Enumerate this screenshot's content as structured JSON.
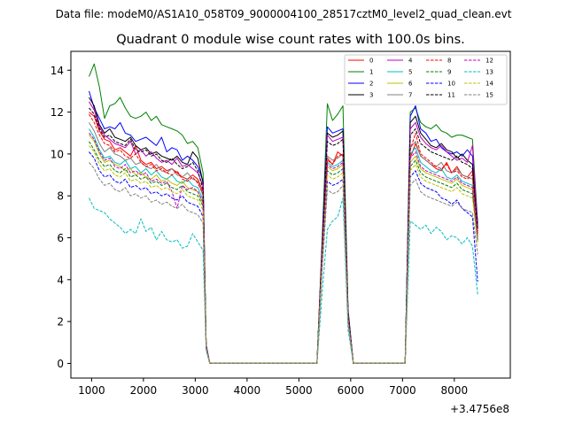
{
  "chart_data": {
    "type": "line",
    "suptitle": "Data file: modeM0/AS1A10_058T09_9000004100_28517cztM0_level2_quad_clean.evt",
    "title": "Quadrant 0 module wise count rates with 100.0s bins.",
    "xlabel": "",
    "ylabel": "",
    "x_offset_label": "+3.4756e8",
    "xlim": [
      600,
      9080
    ],
    "ylim": [
      -0.7,
      14.9
    ],
    "xticks": [
      1000,
      2000,
      3000,
      4000,
      5000,
      6000,
      7000,
      8000
    ],
    "yticks": [
      0,
      2,
      4,
      6,
      8,
      10,
      12,
      14
    ],
    "legend_location": "top-right",
    "x": [
      950,
      1050,
      1150,
      1250,
      1350,
      1450,
      1550,
      1650,
      1750,
      1850,
      1950,
      2050,
      2150,
      2250,
      2350,
      2450,
      2550,
      2650,
      2750,
      2850,
      2950,
      3050,
      3150,
      3210,
      3280,
      3350,
      5350,
      5450,
      5550,
      5650,
      5750,
      5850,
      5950,
      6050,
      6150,
      7050,
      7150,
      7250,
      7350,
      7450,
      7550,
      7650,
      7750,
      7850,
      7950,
      8050,
      8150,
      8250,
      8350,
      8450
    ],
    "series": [
      {
        "name": "0",
        "color": "#ff0000",
        "dash": false,
        "values": [
          12.0,
          11.8,
          11.1,
          10.7,
          10.6,
          10.2,
          10.3,
          10.1,
          9.9,
          10.4,
          9.7,
          9.5,
          9.6,
          9.3,
          9.4,
          9.2,
          9.3,
          9.1,
          8.9,
          8.8,
          9.0,
          8.8,
          8.2,
          0.8,
          0.0,
          0.0,
          0.0,
          5.5,
          9.8,
          9.5,
          10.1,
          9.9,
          2.3,
          0.0,
          0.0,
          0.0,
          9.8,
          10.5,
          9.9,
          9.7,
          9.5,
          9.3,
          9.2,
          9.6,
          9.1,
          9.4,
          9.0,
          8.9,
          9.2,
          6.3
        ]
      },
      {
        "name": "1",
        "color": "#008000",
        "dash": false,
        "values": [
          13.7,
          14.3,
          13.2,
          11.7,
          12.3,
          12.4,
          12.7,
          12.2,
          11.8,
          11.7,
          11.8,
          12.0,
          11.6,
          11.8,
          11.4,
          11.3,
          11.2,
          11.1,
          10.9,
          10.5,
          10.6,
          10.3,
          9.1,
          0.9,
          0.0,
          0.0,
          0.0,
          6.0,
          12.4,
          11.6,
          11.9,
          12.3,
          2.6,
          0.0,
          0.0,
          0.0,
          12.0,
          12.2,
          11.5,
          11.3,
          11.2,
          11.4,
          11.1,
          11.0,
          10.8,
          10.9,
          10.9,
          10.8,
          10.7,
          6.7
        ]
      },
      {
        "name": "2",
        "color": "#0000ff",
        "dash": false,
        "values": [
          13.0,
          12.2,
          11.7,
          11.2,
          11.3,
          11.2,
          11.5,
          11.0,
          10.9,
          10.6,
          10.7,
          10.8,
          10.6,
          10.4,
          10.8,
          10.1,
          10.3,
          10.2,
          9.7,
          9.9,
          9.7,
          9.4,
          8.7,
          0.9,
          0.0,
          0.0,
          0.0,
          5.8,
          11.3,
          11.0,
          11.1,
          11.2,
          2.5,
          0.0,
          0.0,
          0.0,
          11.8,
          12.3,
          11.2,
          11.0,
          10.6,
          10.7,
          10.3,
          10.1,
          10.0,
          10.1,
          9.9,
          10.2,
          9.9,
          6.6
        ]
      },
      {
        "name": "3",
        "color": "#000000",
        "dash": false,
        "values": [
          12.7,
          12.3,
          11.4,
          11.0,
          11.2,
          10.8,
          10.7,
          10.6,
          10.8,
          10.4,
          10.2,
          10.3,
          10.0,
          10.1,
          9.9,
          9.8,
          9.7,
          9.9,
          9.6,
          9.5,
          10.1,
          9.8,
          8.6,
          0.8,
          0.0,
          0.0,
          0.0,
          5.7,
          11.0,
          10.8,
          10.9,
          11.1,
          2.4,
          0.0,
          0.0,
          0.0,
          11.5,
          11.8,
          11.0,
          10.7,
          10.4,
          10.3,
          10.5,
          10.2,
          10.1,
          9.8,
          10.0,
          9.7,
          9.5,
          6.5
        ]
      },
      {
        "name": "4",
        "color": "#bf00bf",
        "dash": false,
        "values": [
          12.5,
          12.1,
          11.3,
          10.9,
          10.7,
          10.5,
          10.4,
          10.3,
          10.6,
          10.0,
          10.2,
          9.9,
          10.1,
          9.8,
          9.6,
          9.7,
          9.5,
          9.8,
          9.4,
          9.5,
          9.3,
          9.1,
          8.5,
          0.8,
          0.0,
          0.0,
          0.0,
          5.6,
          10.9,
          10.6,
          10.7,
          10.8,
          2.4,
          0.0,
          0.0,
          0.0,
          11.2,
          11.5,
          10.8,
          10.5,
          10.3,
          10.2,
          10.4,
          10.1,
          9.9,
          9.7,
          9.8,
          9.6,
          10.4,
          6.4
        ]
      },
      {
        "name": "5",
        "color": "#00bfbf",
        "dash": false,
        "values": [
          11.2,
          10.8,
          10.2,
          9.8,
          9.9,
          9.6,
          9.5,
          9.7,
          9.3,
          9.4,
          9.1,
          9.3,
          9.0,
          9.2,
          8.9,
          8.8,
          9.0,
          8.7,
          8.6,
          8.8,
          8.5,
          8.4,
          7.8,
          0.8,
          0.0,
          0.0,
          0.0,
          5.2,
          9.6,
          9.4,
          9.5,
          9.7,
          2.2,
          0.0,
          0.0,
          0.0,
          10.0,
          10.3,
          9.6,
          9.4,
          9.2,
          9.1,
          9.3,
          8.9,
          8.8,
          9.0,
          8.7,
          8.6,
          8.5,
          6.0
        ]
      },
      {
        "name": "6",
        "color": "#bfbf00",
        "dash": false,
        "values": [
          10.9,
          10.6,
          10.0,
          9.6,
          9.7,
          9.5,
          9.4,
          9.2,
          9.3,
          9.0,
          9.1,
          8.9,
          8.8,
          9.0,
          8.7,
          8.8,
          8.6,
          8.5,
          8.7,
          8.4,
          8.3,
          8.2,
          7.6,
          0.8,
          0.0,
          0.0,
          0.0,
          5.1,
          9.4,
          9.2,
          9.3,
          9.5,
          2.1,
          0.0,
          0.0,
          0.0,
          9.6,
          9.9,
          9.3,
          9.1,
          9.0,
          8.9,
          8.8,
          8.7,
          8.6,
          8.8,
          8.5,
          8.4,
          8.3,
          5.9
        ]
      },
      {
        "name": "7",
        "color": "#808080",
        "dash": false,
        "values": [
          11.5,
          11.1,
          10.5,
          10.1,
          10.3,
          10.0,
          9.9,
          9.7,
          9.8,
          9.5,
          9.6,
          9.4,
          9.3,
          9.5,
          9.2,
          9.1,
          9.3,
          9.0,
          8.9,
          9.1,
          8.8,
          8.7,
          8.0,
          0.8,
          0.0,
          0.0,
          0.0,
          5.3,
          9.9,
          9.7,
          9.8,
          10.0,
          2.2,
          0.0,
          0.0,
          0.0,
          10.3,
          10.6,
          9.9,
          9.7,
          9.5,
          9.4,
          9.6,
          9.2,
          9.1,
          9.3,
          9.0,
          8.9,
          8.8,
          6.1
        ]
      },
      {
        "name": "8",
        "color": "#ff0000",
        "dash": true,
        "values": [
          11.9,
          11.5,
          10.9,
          10.5,
          10.4,
          10.1,
          10.2,
          9.9,
          9.8,
          10.0,
          9.6,
          9.4,
          9.5,
          9.2,
          9.3,
          9.1,
          9.0,
          9.2,
          8.8,
          8.7,
          8.9,
          8.6,
          8.1,
          0.8,
          0.0,
          0.0,
          0.0,
          5.4,
          9.7,
          9.5,
          9.9,
          10.0,
          2.3,
          0.0,
          0.0,
          0.0,
          10.2,
          11.0,
          10.0,
          9.8,
          9.6,
          9.4,
          9.3,
          9.5,
          9.1,
          9.2,
          8.9,
          8.8,
          9.0,
          6.2
        ]
      },
      {
        "name": "9",
        "color": "#008000",
        "dash": true,
        "values": [
          10.6,
          10.2,
          9.7,
          9.4,
          9.5,
          9.2,
          9.1,
          9.3,
          8.9,
          9.0,
          8.8,
          8.9,
          8.6,
          8.7,
          8.5,
          8.6,
          8.4,
          8.3,
          8.5,
          8.2,
          8.1,
          8.0,
          7.5,
          0.7,
          0.0,
          0.0,
          0.0,
          5.0,
          9.2,
          9.0,
          9.1,
          9.3,
          2.1,
          0.0,
          0.0,
          0.0,
          9.4,
          9.7,
          9.1,
          8.9,
          8.8,
          8.7,
          8.6,
          8.5,
          8.4,
          8.6,
          8.3,
          8.2,
          8.1,
          5.8
        ]
      },
      {
        "name": "10",
        "color": "#0000ff",
        "dash": true,
        "values": [
          10.1,
          9.8,
          9.2,
          8.9,
          9.0,
          8.7,
          8.6,
          8.8,
          8.4,
          8.5,
          8.3,
          8.4,
          8.1,
          8.2,
          8.0,
          8.1,
          7.9,
          7.8,
          8.0,
          7.7,
          7.6,
          7.5,
          7.0,
          0.7,
          0.0,
          0.0,
          0.0,
          4.7,
          8.7,
          8.5,
          8.6,
          8.8,
          2.0,
          0.0,
          0.0,
          0.0,
          8.9,
          9.2,
          8.6,
          8.4,
          8.3,
          8.2,
          7.9,
          7.8,
          7.6,
          7.8,
          7.4,
          7.2,
          7.0,
          3.9
        ]
      },
      {
        "name": "11",
        "color": "#000000",
        "dash": true,
        "values": [
          12.2,
          11.9,
          11.2,
          10.8,
          10.9,
          10.6,
          10.5,
          10.4,
          10.7,
          10.2,
          10.1,
          10.2,
          9.9,
          10.0,
          9.7,
          9.6,
          9.8,
          9.5,
          9.3,
          9.4,
          9.6,
          9.2,
          8.3,
          0.8,
          0.0,
          0.0,
          0.0,
          5.6,
          10.6,
          10.4,
          10.5,
          10.7,
          2.4,
          0.0,
          0.0,
          0.0,
          10.9,
          11.2,
          10.5,
          10.3,
          10.1,
          10.0,
          9.9,
          9.8,
          9.7,
          9.9,
          9.6,
          9.5,
          9.3,
          6.4
        ]
      },
      {
        "name": "12",
        "color": "#bf00bf",
        "dash": true,
        "values": [
          11.0,
          10.7,
          10.1,
          9.7,
          9.8,
          9.4,
          9.3,
          9.5,
          9.1,
          9.2,
          9.0,
          9.1,
          8.7,
          8.8,
          8.6,
          8.7,
          8.2,
          7.4,
          8.5,
          8.3,
          8.4,
          8.2,
          7.7,
          0.8,
          0.0,
          0.0,
          0.0,
          5.2,
          9.5,
          9.3,
          9.4,
          9.6,
          2.2,
          0.0,
          0.0,
          0.0,
          9.8,
          10.1,
          9.4,
          9.2,
          9.1,
          9.0,
          8.9,
          8.8,
          8.7,
          8.9,
          8.6,
          8.5,
          8.4,
          5.9
        ]
      },
      {
        "name": "13",
        "color": "#00bfbf",
        "dash": true,
        "values": [
          7.9,
          7.4,
          7.3,
          7.2,
          6.9,
          6.7,
          6.5,
          6.2,
          6.4,
          6.2,
          6.9,
          6.3,
          6.5,
          5.9,
          6.3,
          5.9,
          5.8,
          5.9,
          5.5,
          5.6,
          6.2,
          5.8,
          5.4,
          0.6,
          0.0,
          0.0,
          0.0,
          3.4,
          6.4,
          6.8,
          7.0,
          7.9,
          1.6,
          0.0,
          0.0,
          0.0,
          6.8,
          6.6,
          6.4,
          6.6,
          6.2,
          6.5,
          6.3,
          5.9,
          6.1,
          6.0,
          5.7,
          6.0,
          5.6,
          3.3
        ]
      },
      {
        "name": "14",
        "color": "#bfbf00",
        "dash": true,
        "values": [
          10.4,
          10.1,
          9.5,
          9.2,
          9.3,
          9.0,
          8.9,
          9.1,
          8.7,
          8.8,
          8.6,
          8.7,
          8.4,
          8.5,
          8.3,
          8.4,
          8.2,
          8.1,
          8.3,
          8.0,
          7.9,
          7.8,
          7.3,
          0.7,
          0.0,
          0.0,
          0.0,
          4.9,
          9.0,
          8.8,
          8.9,
          9.1,
          2.0,
          0.0,
          0.0,
          0.0,
          9.2,
          9.5,
          8.9,
          8.7,
          8.6,
          8.5,
          8.4,
          8.3,
          8.2,
          8.4,
          8.1,
          8.0,
          7.9,
          5.7
        ]
      },
      {
        "name": "15",
        "color": "#808080",
        "dash": true,
        "values": [
          9.6,
          9.3,
          8.8,
          8.5,
          8.6,
          8.3,
          8.2,
          8.4,
          8.0,
          8.1,
          7.9,
          8.0,
          7.7,
          7.8,
          7.6,
          7.7,
          7.5,
          7.4,
          7.6,
          7.3,
          7.2,
          7.1,
          6.7,
          0.7,
          0.0,
          0.0,
          0.0,
          4.5,
          8.3,
          8.1,
          8.2,
          8.5,
          1.9,
          0.0,
          0.0,
          0.0,
          8.5,
          8.8,
          8.2,
          8.0,
          7.9,
          7.8,
          7.7,
          7.6,
          7.5,
          7.7,
          7.4,
          7.3,
          7.2,
          5.2
        ]
      }
    ]
  }
}
